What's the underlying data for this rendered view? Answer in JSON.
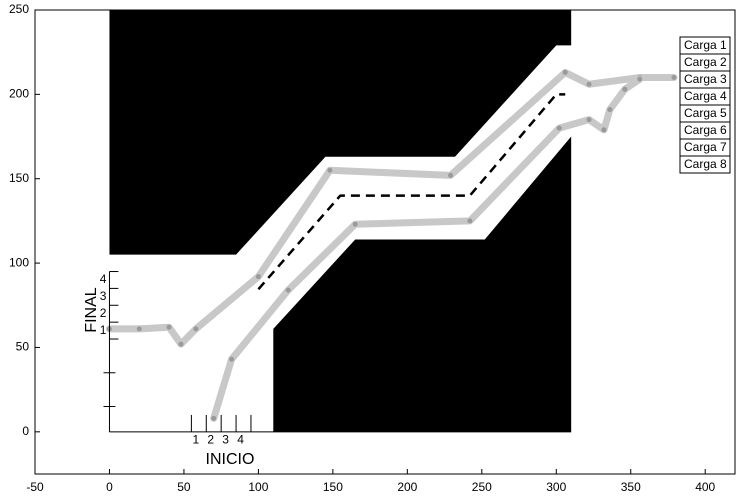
{
  "chart_data": {
    "type": "line",
    "xlim": [
      -50,
      420
    ],
    "ylim": [
      -25,
      250
    ],
    "xticks": [
      -50,
      0,
      50,
      100,
      150,
      200,
      250,
      300,
      350,
      400
    ],
    "yticks": [
      0,
      50,
      100,
      150,
      200,
      250
    ],
    "regions": [
      {
        "color": "#000000",
        "x": [
          0,
          85,
          145,
          232,
          300,
          310,
          310,
          0
        ],
        "y": [
          105,
          105,
          163,
          163,
          229,
          229,
          250,
          250
        ]
      },
      {
        "color": "#000000",
        "x": [
          110,
          110,
          165,
          252,
          310,
          310
        ],
        "y": [
          0,
          61,
          114,
          114,
          175,
          0
        ]
      }
    ],
    "series": [
      {
        "color": "#000000",
        "dashed": true,
        "x": [
          100,
          155,
          242,
          300,
          306
        ],
        "y": [
          84.5,
          140,
          140,
          200,
          200
        ]
      },
      {
        "color": "#c8c8c8",
        "dashed": false,
        "x": [
          0,
          20,
          40,
          48,
          58,
          100,
          148,
          229,
          306,
          322,
          356,
          379
        ],
        "y": [
          61,
          61,
          62,
          52,
          61,
          92,
          155,
          152,
          213,
          206,
          210,
          210
        ]
      },
      {
        "color": "#c8c8c8",
        "dashed": false,
        "x": [
          70,
          82,
          120,
          165,
          242,
          302,
          322,
          332,
          336,
          346,
          356
        ],
        "y": [
          8,
          43,
          84,
          123,
          125,
          180,
          185,
          179,
          191,
          203,
          209
        ]
      }
    ],
    "final_label": "FINAL",
    "final_ticks": [
      "1",
      "2",
      "3",
      "4"
    ],
    "inicio_label": "INICIO",
    "inicio_ticks": [
      "1",
      "2",
      "3",
      "4"
    ],
    "legend": [
      "Carga 1",
      "Carga 2",
      "Carga 3",
      "Carga 4",
      "Carga 5",
      "Carga 6",
      "Carga 7",
      "Carga 8"
    ]
  }
}
